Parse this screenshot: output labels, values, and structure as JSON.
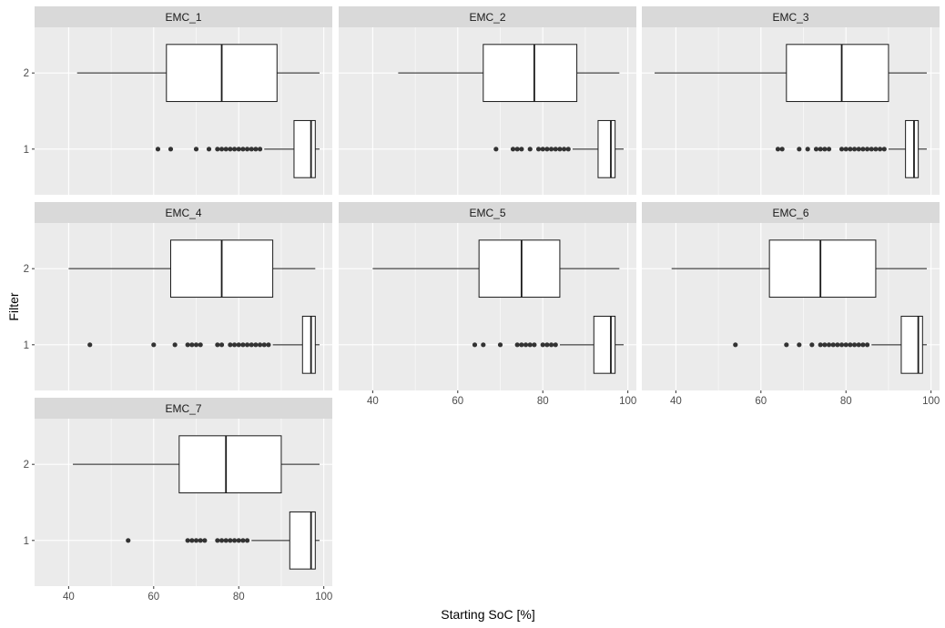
{
  "chart_data": {
    "type": "boxplot",
    "facet_layout": "3 columns x 3 rows, horizontal boxplots",
    "xlabel": "Starting SoC [%]",
    "ylabel": "Filter",
    "xlim": [
      32,
      102
    ],
    "x_ticks": [
      40,
      60,
      80,
      100
    ],
    "y_categories": [
      "1",
      "2"
    ],
    "grid": true,
    "colors": {
      "panel_bg": "#ebebeb",
      "strip_bg": "#d9d9d9",
      "grid": "#ffffff",
      "box_fill": "#ffffff",
      "box_line": "#1a1a1a",
      "outlier": "#333333"
    },
    "panels": [
      {
        "name": "EMC_1",
        "boxes": [
          {
            "filter": "2",
            "whisker_low": 42,
            "q1": 63,
            "median": 76,
            "q3": 89,
            "whisker_high": 99,
            "outliers": []
          },
          {
            "filter": "1",
            "whisker_low": 86,
            "q1": 93,
            "median": 97,
            "q3": 98,
            "whisker_high": 99,
            "outliers": [
              61,
              64,
              70,
              73,
              75,
              76,
              77,
              78,
              79,
              80,
              81,
              82,
              83,
              84,
              85
            ]
          }
        ]
      },
      {
        "name": "EMC_2",
        "boxes": [
          {
            "filter": "2",
            "whisker_low": 46,
            "q1": 66,
            "median": 78,
            "q3": 88,
            "whisker_high": 98,
            "outliers": []
          },
          {
            "filter": "1",
            "whisker_low": 87,
            "q1": 93,
            "median": 96,
            "q3": 97,
            "whisker_high": 99,
            "outliers": [
              69,
              73,
              74,
              75,
              77,
              79,
              80,
              81,
              82,
              83,
              84,
              85,
              86
            ]
          }
        ]
      },
      {
        "name": "EMC_3",
        "boxes": [
          {
            "filter": "2",
            "whisker_low": 35,
            "q1": 66,
            "median": 79,
            "q3": 90,
            "whisker_high": 99,
            "outliers": []
          },
          {
            "filter": "1",
            "whisker_low": 90,
            "q1": 94,
            "median": 96,
            "q3": 97,
            "whisker_high": 99,
            "outliers": [
              64,
              65,
              69,
              71,
              73,
              74,
              75,
              76,
              79,
              80,
              81,
              82,
              83,
              84,
              85,
              86,
              87,
              88,
              89
            ]
          }
        ]
      },
      {
        "name": "EMC_4",
        "boxes": [
          {
            "filter": "2",
            "whisker_low": 40,
            "q1": 64,
            "median": 76,
            "q3": 88,
            "whisker_high": 98,
            "outliers": []
          },
          {
            "filter": "1",
            "whisker_low": 88,
            "q1": 95,
            "median": 97,
            "q3": 98,
            "whisker_high": 99,
            "outliers": [
              45,
              60,
              65,
              68,
              69,
              70,
              71,
              75,
              76,
              78,
              79,
              80,
              81,
              82,
              83,
              84,
              85,
              86,
              87
            ]
          }
        ]
      },
      {
        "name": "EMC_5",
        "boxes": [
          {
            "filter": "2",
            "whisker_low": 40,
            "q1": 65,
            "median": 75,
            "q3": 84,
            "whisker_high": 98,
            "outliers": []
          },
          {
            "filter": "1",
            "whisker_low": 84,
            "q1": 92,
            "median": 96,
            "q3": 97,
            "whisker_high": 99,
            "outliers": [
              64,
              66,
              70,
              74,
              75,
              76,
              77,
              78,
              80,
              81,
              82,
              83
            ]
          }
        ]
      },
      {
        "name": "EMC_6",
        "boxes": [
          {
            "filter": "2",
            "whisker_low": 39,
            "q1": 62,
            "median": 74,
            "q3": 87,
            "whisker_high": 99,
            "outliers": []
          },
          {
            "filter": "1",
            "whisker_low": 86,
            "q1": 93,
            "median": 97,
            "q3": 98,
            "whisker_high": 99,
            "outliers": [
              54,
              66,
              69,
              72,
              74,
              75,
              76,
              77,
              78,
              79,
              80,
              81,
              82,
              83,
              84,
              85
            ]
          }
        ]
      },
      {
        "name": "EMC_7",
        "boxes": [
          {
            "filter": "2",
            "whisker_low": 41,
            "q1": 66,
            "median": 77,
            "q3": 90,
            "whisker_high": 99,
            "outliers": []
          },
          {
            "filter": "1",
            "whisker_low": 83,
            "q1": 92,
            "median": 97,
            "q3": 98,
            "whisker_high": 99,
            "outliers": [
              54,
              68,
              69,
              70,
              71,
              72,
              75,
              76,
              77,
              78,
              79,
              80,
              81,
              82
            ]
          }
        ]
      }
    ]
  }
}
